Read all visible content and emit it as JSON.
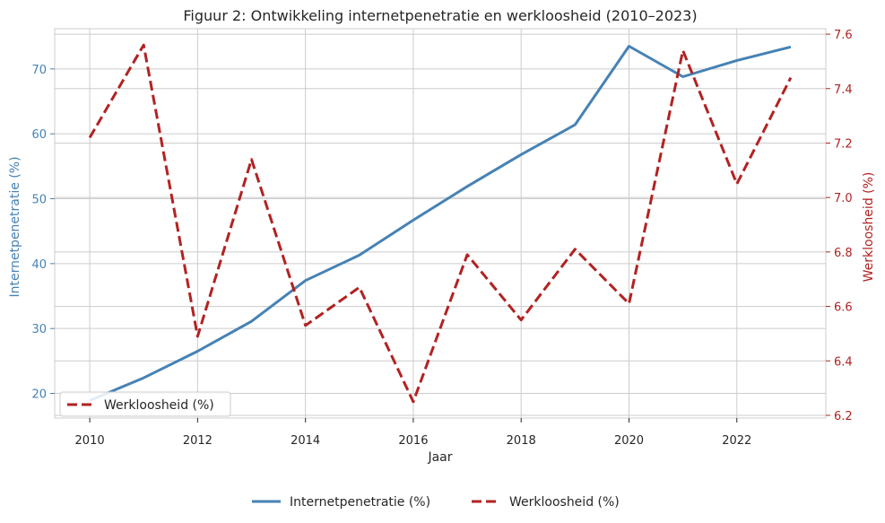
{
  "chart_data": {
    "type": "line",
    "title": "Figuur 2: Ontwikkeling internetpenetratie en werkloosheid (2010–2023)",
    "xlabel": "Jaar",
    "ylabel_left": "Internetpenetratie (%)",
    "ylabel_right": "Werkloosheid (%)",
    "x": [
      2010,
      2011,
      2012,
      2013,
      2014,
      2015,
      2016,
      2017,
      2018,
      2019,
      2020,
      2021,
      2022,
      2023
    ],
    "x_ticks": [
      2010,
      2012,
      2014,
      2016,
      2018,
      2020,
      2022
    ],
    "xlim": [
      2009.35,
      2023.65
    ],
    "left_ticks": [
      20,
      30,
      40,
      50,
      60,
      70
    ],
    "ylim_left": [
      16.2,
      76.2
    ],
    "right_ticks": [
      6.2,
      6.4,
      6.6,
      6.8,
      7.0,
      7.2,
      7.4,
      7.6
    ],
    "right_tick_labels": [
      "6.2",
      "6.4",
      "6.6",
      "6.8",
      "7.0",
      "7.2",
      "7.4",
      "7.6"
    ],
    "ylim_right": [
      6.19,
      7.62
    ],
    "grid": true,
    "colors": {
      "left": "#4682b4",
      "right": "#b22222",
      "grid": "#cccccc",
      "text": "#262626"
    },
    "series": [
      {
        "name": "Internetpenetratie (%)",
        "axis": "left",
        "style": "solid",
        "color": "#4682b4",
        "values": [
          18.9,
          22.4,
          26.5,
          31.1,
          37.4,
          41.3,
          46.7,
          51.9,
          56.8,
          61.4,
          73.5,
          68.8,
          71.3,
          73.4
        ]
      },
      {
        "name": "Werkloosheid (%)",
        "axis": "right",
        "style": "dashed",
        "color": "#b22222",
        "values": [
          7.22,
          7.56,
          6.49,
          7.14,
          6.53,
          6.67,
          6.25,
          6.79,
          6.55,
          6.81,
          6.61,
          7.54,
          7.05,
          7.44
        ]
      }
    ],
    "inner_legend": {
      "placement": "lower-left",
      "entries": [
        "Werkloosheid (%)"
      ]
    },
    "outer_legend": {
      "placement": "bottom-center",
      "entries": [
        "Internetpenetratie (%)",
        "Werkloosheid (%)"
      ]
    }
  }
}
